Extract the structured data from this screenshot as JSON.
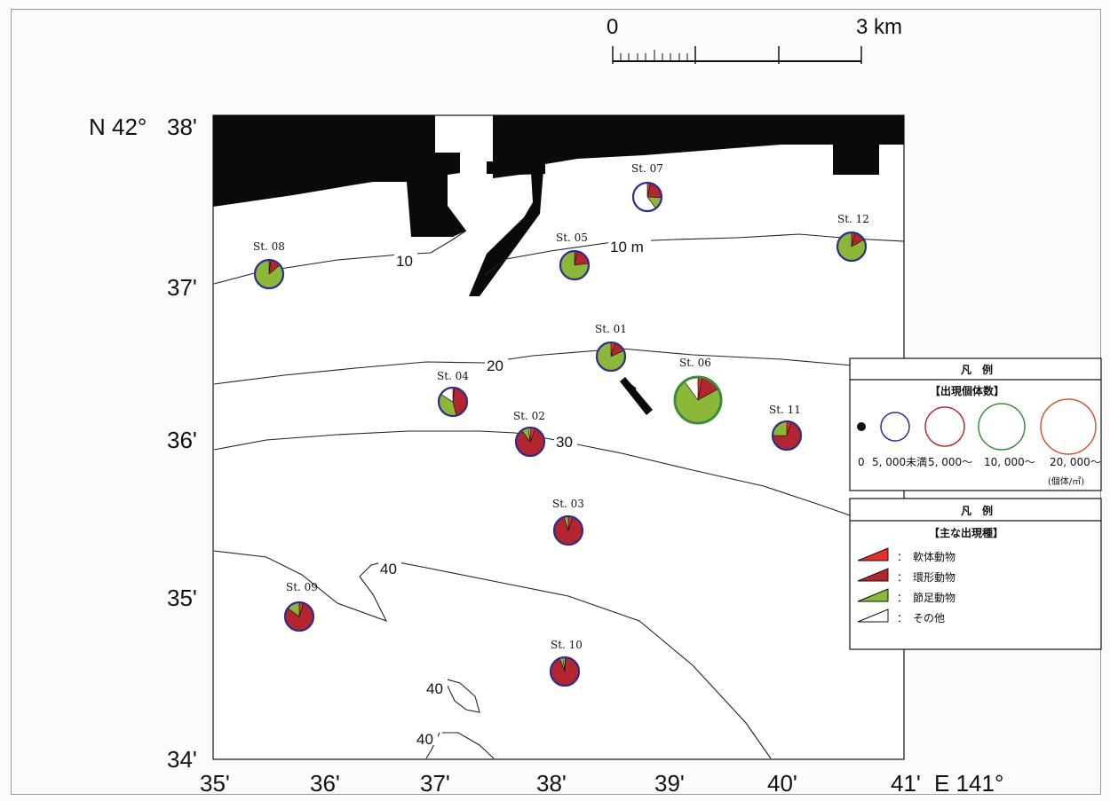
{
  "scale_bar": {
    "start_label": "0",
    "end_label": "3 km"
  },
  "axes": {
    "lat_prefix": "N 42°",
    "lat_labels": [
      "38'",
      "37'",
      "36'",
      "35'",
      "34'"
    ],
    "lon_labels": [
      "35'",
      "36'",
      "37'",
      "38'",
      "39'",
      "40'",
      "41'"
    ],
    "lon_suffix": "E 141°"
  },
  "contours": {
    "label_10a": "10",
    "label_10m": "10 m",
    "label_20": "20",
    "label_30": "30",
    "label_40a": "40",
    "label_40b": "40",
    "label_40c": "40"
  },
  "colors": {
    "mollusca": "#e2302b",
    "annelida": "#b3262f",
    "arthropoda": "#8cb83a",
    "other": "#ffffff",
    "ring_lt5000": "#2d2d8c",
    "ring_5000": "#b4303a",
    "ring_10000": "#3c8c3c",
    "ring_20000": "#d05a3a",
    "land": "#0a0a0a"
  },
  "stations": [
    {
      "name": "St. 01",
      "size_class": "lt5000",
      "composition": {
        "mollusca": 0.05,
        "annelida": 0.13,
        "arthropoda": 0.82,
        "other": 0.0
      }
    },
    {
      "name": "St. 02",
      "size_class": "lt5000",
      "composition": {
        "mollusca": 0.06,
        "annelida": 0.84,
        "arthropoda": 0.08,
        "other": 0.02
      }
    },
    {
      "name": "St. 03",
      "size_class": "lt5000",
      "composition": {
        "mollusca": 0.05,
        "annelida": 0.9,
        "arthropoda": 0.05,
        "other": 0.0
      }
    },
    {
      "name": "St. 04",
      "size_class": "lt5000",
      "composition": {
        "mollusca": 0.02,
        "annelida": 0.44,
        "arthropoda": 0.38,
        "other": 0.16
      }
    },
    {
      "name": "St. 05",
      "size_class": "lt5000",
      "composition": {
        "mollusca": 0.03,
        "annelida": 0.2,
        "arthropoda": 0.77,
        "other": 0.0
      }
    },
    {
      "name": "St. 06",
      "size_class": "10000",
      "composition": {
        "mollusca": 0.03,
        "annelida": 0.14,
        "arthropoda": 0.73,
        "other": 0.1
      }
    },
    {
      "name": "St. 07",
      "size_class": "lt5000",
      "composition": {
        "mollusca": 0.04,
        "annelida": 0.22,
        "arthropoda": 0.14,
        "other": 0.6
      }
    },
    {
      "name": "St. 08",
      "size_class": "lt5000",
      "composition": {
        "mollusca": 0.02,
        "annelida": 0.12,
        "arthropoda": 0.86,
        "other": 0.0
      }
    },
    {
      "name": "St. 09",
      "size_class": "lt5000",
      "composition": {
        "mollusca": 0.05,
        "annelida": 0.8,
        "arthropoda": 0.15,
        "other": 0.0
      }
    },
    {
      "name": "St. 10",
      "size_class": "lt5000",
      "composition": {
        "mollusca": 0.01,
        "annelida": 0.93,
        "arthropoda": 0.04,
        "other": 0.02
      }
    },
    {
      "name": "St. 11",
      "size_class": "lt5000",
      "composition": {
        "mollusca": 0.05,
        "annelida": 0.7,
        "arthropoda": 0.25,
        "other": 0.0
      }
    },
    {
      "name": "St. 12",
      "size_class": "lt5000",
      "composition": {
        "mollusca": 0.04,
        "annelida": 0.13,
        "arthropoda": 0.83,
        "other": 0.0
      }
    }
  ],
  "legend_abundance": {
    "title": "凡　例",
    "subtitle": "【出現個体数】",
    "labels": [
      "0",
      "5, 000未満",
      "5, 000～",
      "10, 000～",
      "20, 000～"
    ],
    "unit": "(個体/㎡)"
  },
  "legend_species": {
    "title": "凡　例",
    "subtitle": "【主な出現種】",
    "items": [
      {
        "key": "mollusca",
        "label": "：　軟体動物"
      },
      {
        "key": "annelida",
        "label": "：　環形動物"
      },
      {
        "key": "arthropoda",
        "label": "：　節足動物"
      },
      {
        "key": "other",
        "label": "：　その他"
      }
    ]
  }
}
